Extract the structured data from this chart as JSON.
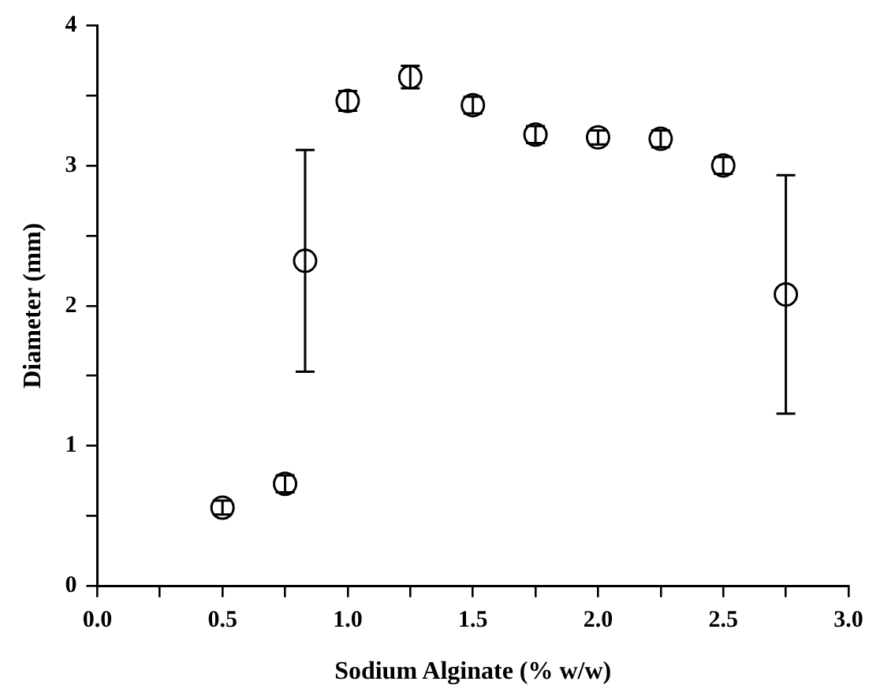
{
  "chart_data": {
    "type": "scatter",
    "xlabel": "Sodium Alginate (% w/w)",
    "ylabel": "Diameter (mm)",
    "x": [
      0.5,
      0.75,
      0.83,
      1.0,
      1.25,
      1.5,
      1.75,
      2.0,
      2.25,
      2.5,
      2.75
    ],
    "series": [
      {
        "color": "#000000",
        "values": [
          0.56,
          0.73,
          2.32,
          3.46,
          3.63,
          3.43,
          3.22,
          3.2,
          3.19,
          3.0,
          2.08
        ],
        "errors": [
          0.05,
          0.06,
          0.79,
          0.07,
          0.08,
          0.06,
          0.06,
          0.05,
          0.06,
          0.06,
          0.85
        ]
      }
    ],
    "xlim": [
      0,
      3
    ],
    "xticks": [
      {
        "value": 0,
        "label": "0.0"
      },
      {
        "value": 0.25,
        "label": null
      },
      {
        "value": 0.5,
        "label": "0.5"
      },
      {
        "value": 0.75,
        "label": null
      },
      {
        "value": 1,
        "label": "1.0"
      },
      {
        "value": 1.25,
        "label": null
      },
      {
        "value": 1.5,
        "label": "1.5"
      },
      {
        "value": 1.75,
        "label": null
      },
      {
        "value": 2,
        "label": "2.0"
      },
      {
        "value": 2.25,
        "label": null
      },
      {
        "value": 2.5,
        "label": "2.5"
      },
      {
        "value": 2.75,
        "label": null
      },
      {
        "value": 3,
        "label": "3.0"
      }
    ],
    "ylim": [
      0,
      4
    ],
    "yticks": [
      0,
      {
        "value": 0.5,
        "label": null
      },
      1,
      {
        "value": 1.5,
        "label": null
      },
      2,
      {
        "value": 2.5,
        "label": null
      },
      3,
      {
        "value": 3.5,
        "label": null
      },
      4
    ],
    "grid": false,
    "legend": false,
    "marker": "circle"
  }
}
